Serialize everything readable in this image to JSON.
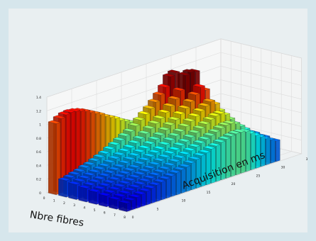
{
  "chart_data": {
    "type": "bar3d",
    "title": "",
    "xlabel": "Acquisition en ms",
    "ylabel": "Nbre fibres",
    "zlabel": "",
    "x_ticks": [
      "0",
      "5",
      "10",
      "15",
      "20",
      "25",
      "30",
      "35"
    ],
    "y_ticks": [
      "0",
      "1",
      "2",
      "3",
      "4",
      "5",
      "6",
      "7",
      "8"
    ],
    "z_ticks": [
      "0",
      "0.2",
      "0.4",
      "0.6",
      "0.8",
      "1",
      "1.2",
      "1.4"
    ],
    "zlim": [
      0,
      1.4
    ],
    "grid": true,
    "colormap": "jet",
    "rows": [
      {
        "fibres": 1,
        "values": [
          1.04,
          1.09,
          1.12,
          1.13,
          1.12,
          1.1,
          1.07,
          1.03,
          0.99,
          0.95,
          0.9,
          0.86,
          0.82,
          0.77,
          0.73,
          0.69,
          0.65,
          0.61,
          0.57,
          0.54,
          0.51,
          0.48,
          0.45,
          0.42,
          0.4,
          0.37,
          0.35,
          0.33,
          0.31,
          0.29,
          0.28
        ]
      },
      {
        "fibres": 2,
        "values": [
          0.24,
          0.26,
          0.28,
          0.3,
          0.33,
          0.35,
          0.38,
          0.41,
          0.44,
          0.48,
          0.52,
          0.56,
          0.6,
          0.64,
          0.7,
          0.76,
          0.82,
          0.88,
          0.95,
          1.03,
          1.12,
          1.25,
          1.28,
          0.96,
          0.82,
          0.72,
          0.63,
          0.56,
          0.5,
          0.44,
          0.4
        ]
      },
      {
        "fibres": 3,
        "values": [
          0.22,
          0.24,
          0.26,
          0.28,
          0.3,
          0.32,
          0.34,
          0.37,
          0.4,
          0.43,
          0.46,
          0.49,
          0.53,
          0.57,
          0.62,
          0.67,
          0.72,
          0.77,
          0.83,
          0.9,
          0.98,
          1.08,
          1.28,
          1.3,
          1.28,
          0.92,
          0.74,
          0.62,
          0.53,
          0.46,
          0.4
        ]
      },
      {
        "fibres": 4,
        "values": [
          0.2,
          0.22,
          0.24,
          0.26,
          0.28,
          0.3,
          0.32,
          0.34,
          0.37,
          0.4,
          0.43,
          0.46,
          0.49,
          0.53,
          0.57,
          0.61,
          0.66,
          0.71,
          0.76,
          0.82,
          0.88,
          0.95,
          1.03,
          1.12,
          1.05,
          0.86,
          0.7,
          0.59,
          0.5,
          0.43,
          0.38
        ]
      },
      {
        "fibres": 5,
        "values": [
          0.18,
          0.2,
          0.22,
          0.24,
          0.26,
          0.28,
          0.3,
          0.32,
          0.34,
          0.37,
          0.4,
          0.43,
          0.46,
          0.49,
          0.53,
          0.57,
          0.61,
          0.65,
          0.7,
          0.75,
          0.8,
          0.85,
          0.9,
          0.94,
          0.88,
          0.76,
          0.64,
          0.55,
          0.47,
          0.41,
          0.36
        ]
      },
      {
        "fibres": 6,
        "values": [
          0.16,
          0.18,
          0.2,
          0.22,
          0.24,
          0.26,
          0.28,
          0.3,
          0.32,
          0.34,
          0.37,
          0.4,
          0.43,
          0.46,
          0.49,
          0.53,
          0.56,
          0.6,
          0.64,
          0.68,
          0.72,
          0.76,
          0.79,
          0.8,
          0.76,
          0.67,
          0.58,
          0.5,
          0.44,
          0.38,
          0.34
        ]
      },
      {
        "fibres": 7,
        "values": [
          0.14,
          0.16,
          0.18,
          0.2,
          0.22,
          0.24,
          0.26,
          0.28,
          0.3,
          0.32,
          0.34,
          0.37,
          0.4,
          0.43,
          0.46,
          0.49,
          0.52,
          0.55,
          0.58,
          0.61,
          0.64,
          0.67,
          0.69,
          0.69,
          0.66,
          0.6,
          0.53,
          0.46,
          0.41,
          0.36,
          0.32
        ]
      },
      {
        "fibres": 8,
        "values": [
          0.12,
          0.14,
          0.16,
          0.18,
          0.2,
          0.22,
          0.24,
          0.26,
          0.28,
          0.3,
          0.32,
          0.34,
          0.36,
          0.39,
          0.42,
          0.45,
          0.47,
          0.5,
          0.52,
          0.55,
          0.57,
          0.59,
          0.6,
          0.6,
          0.58,
          0.53,
          0.48,
          0.43,
          0.38,
          0.34,
          0.3
        ]
      }
    ]
  }
}
